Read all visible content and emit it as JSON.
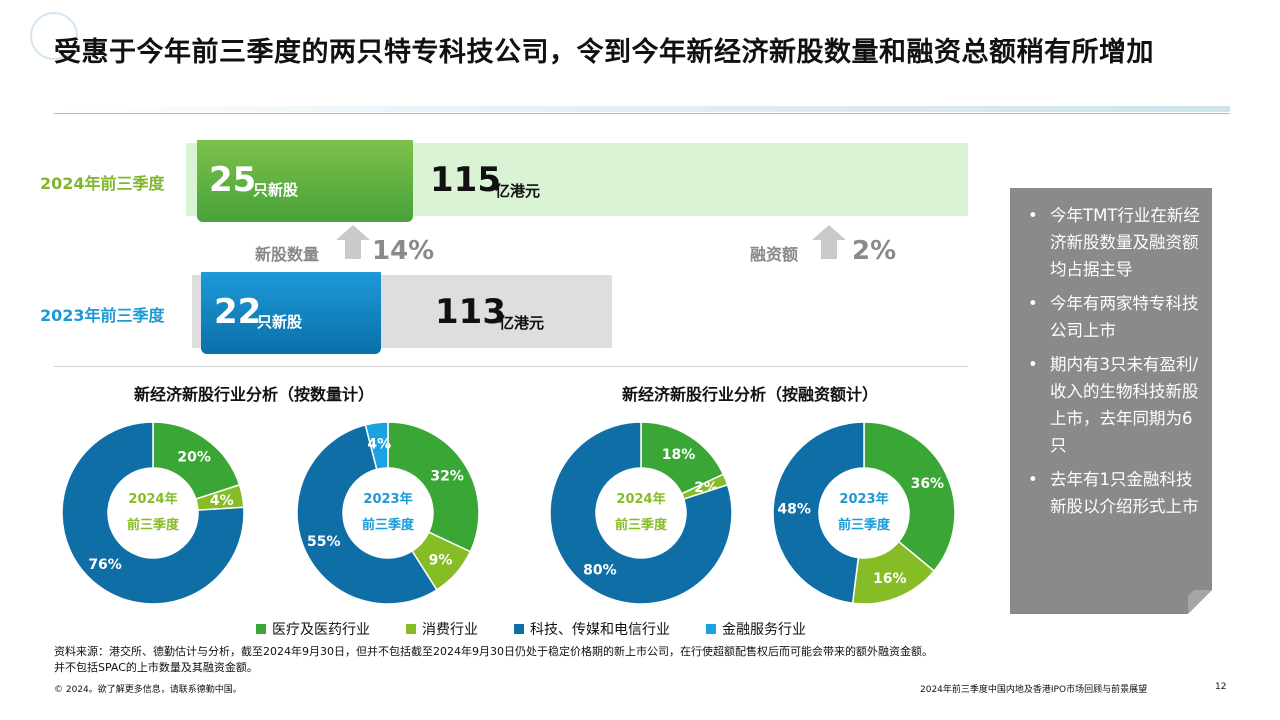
{
  "title": "受惠于今年前三季度的两只特专科技公司，令到今年新经济新股数量和融资总额稍有所增加",
  "rows": {
    "y2024": {
      "label": "2024年前三季度",
      "count": "25",
      "count_unit": "只新股",
      "amount": "115",
      "amount_unit": "亿港元"
    },
    "y2023": {
      "label": "2023年前三季度",
      "count": "22",
      "count_unit": "只新股",
      "amount": "113",
      "amount_unit": "亿港元"
    }
  },
  "growth": {
    "count_label": "新股数量",
    "count_pct": "14%",
    "amount_label": "融资额",
    "amount_pct": "2%"
  },
  "chart_titles": {
    "by_count": "新经济新股行业分析（按数量计）",
    "by_amount": "新经济新股行业分析（按融资额计）"
  },
  "colors": {
    "healthcare": "#3aa635",
    "consumer": "#86bc25",
    "tmt": "#0f6ea6",
    "financial": "#1aa3de"
  },
  "chart_data": [
    {
      "type": "pie",
      "title": "新经济新股行业分析（按数量计）",
      "center_label": [
        "2024年",
        "前三季度"
      ],
      "slices": [
        {
          "category": "医疗及医药行业",
          "value": 20,
          "label": "20%"
        },
        {
          "category": "消费行业",
          "value": 4,
          "label": "4%"
        },
        {
          "category": "科技、传媒和电信行业",
          "value": 76,
          "label": "76%"
        }
      ]
    },
    {
      "type": "pie",
      "title": "新经济新股行业分析（按数量计）",
      "center_label": [
        "2023年",
        "前三季度"
      ],
      "slices": [
        {
          "category": "医疗及医药行业",
          "value": 32,
          "label": "32%"
        },
        {
          "category": "消费行业",
          "value": 9,
          "label": "9%"
        },
        {
          "category": "科技、传媒和电信行业",
          "value": 55,
          "label": "55%"
        },
        {
          "category": "金融服务行业",
          "value": 4,
          "label": "4%"
        }
      ]
    },
    {
      "type": "pie",
      "title": "新经济新股行业分析（按融资额计）",
      "center_label": [
        "2024年",
        "前三季度"
      ],
      "slices": [
        {
          "category": "医疗及医药行业",
          "value": 18,
          "label": "18%"
        },
        {
          "category": "消费行业",
          "value": 2,
          "label": "2%"
        },
        {
          "category": "科技、传媒和电信行业",
          "value": 80,
          "label": "80%"
        }
      ]
    },
    {
      "type": "pie",
      "title": "新经济新股行业分析（按融资额计）",
      "center_label": [
        "2023年",
        "前三季度"
      ],
      "slices": [
        {
          "category": "医疗及医药行业",
          "value": 36,
          "label": "36%"
        },
        {
          "category": "消费行业",
          "value": 16,
          "label": "16%"
        },
        {
          "category": "科技、传媒和电信行业",
          "value": 48,
          "label": "48%"
        }
      ]
    }
  ],
  "legend": [
    "医疗及医药行业",
    "消费行业",
    "科技、传媒和电信行业",
    "金融服务行业"
  ],
  "sidebar": [
    "今年TMT行业在新经济新股数量及融资额均占据主导",
    "今年有两家特专科技公司上市",
    "期内有3只未有盈利/收入的生物科技新股上市，去年同期为6只",
    "去年有1只金融科技新股以介绍形式上市"
  ],
  "source_line1": "资料来源：港交所、德勤估计与分析，截至2024年9月30日，但并不包括截至2024年9月30日仍处于稳定价格期的新上市公司，在行使超额配售权后而可能会带来的额外融资金额。",
  "source_line2": "并不包括SPAC的上市数量及其融资金额。",
  "copyright": "© 2024。欲了解更多信息，请联系德勤中国。",
  "footer_title": "2024年前三季度中国内地及香港IPO市场回顾与前景展望",
  "page_number": "12"
}
